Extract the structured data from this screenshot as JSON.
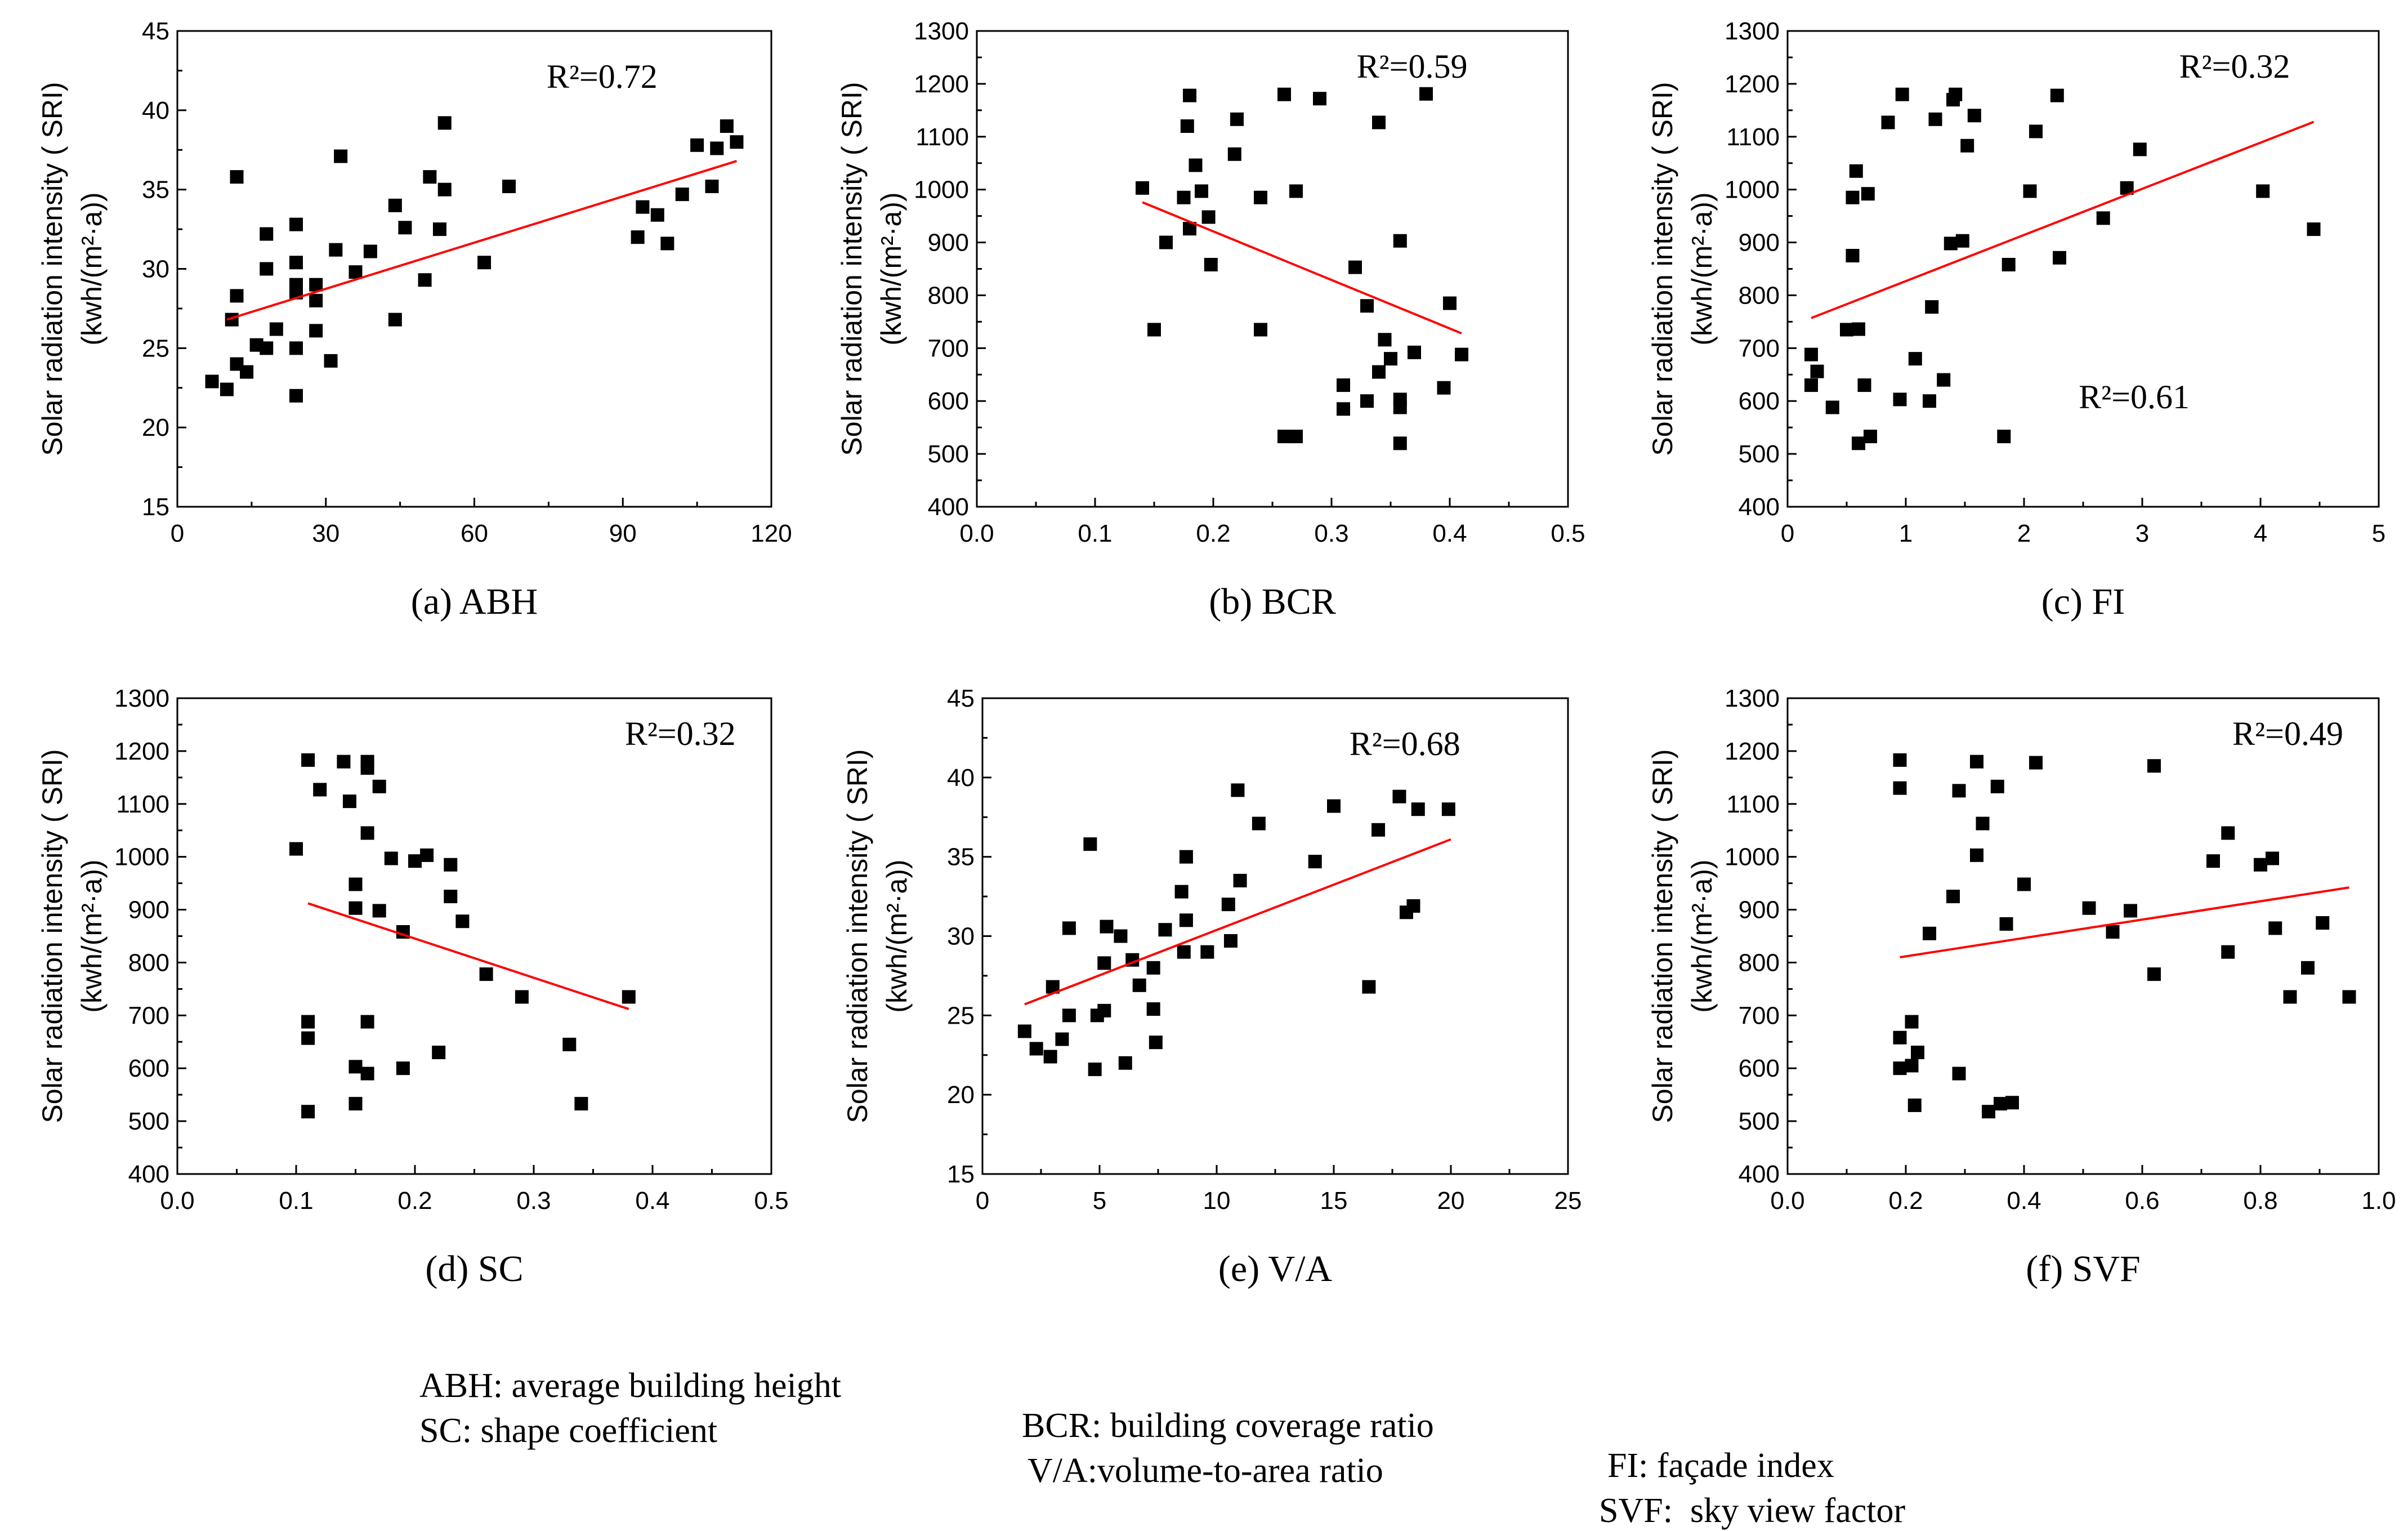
{
  "chart_data": [
    {
      "type": "scatter",
      "caption": "(a) ABH",
      "ylabel_line1": "Solar radiation intensity ( SRI)",
      "ylabel_line2": "(kwh/(m²·a))",
      "xlim": [
        0,
        120
      ],
      "xticks": [
        "0",
        "30",
        "60",
        "90",
        "120"
      ],
      "ylim": [
        15,
        45
      ],
      "yticks": [
        "15",
        "20",
        "25",
        "30",
        "35",
        "40",
        "45"
      ],
      "annotations": [
        {
          "text": "R²=0.72",
          "x": 97,
          "y": 42.2
        }
      ],
      "fit": {
        "x": [
          10,
          113
        ],
        "y": [
          26.8,
          36.8
        ]
      },
      "points": [
        {
          "x": 7,
          "y": 22.9
        },
        {
          "x": 10,
          "y": 22.4
        },
        {
          "x": 11,
          "y": 26.8
        },
        {
          "x": 12,
          "y": 24
        },
        {
          "x": 12,
          "y": 28.3
        },
        {
          "x": 12,
          "y": 35.8
        },
        {
          "x": 14,
          "y": 23.5
        },
        {
          "x": 16,
          "y": 25.2
        },
        {
          "x": 18,
          "y": 25
        },
        {
          "x": 18,
          "y": 30
        },
        {
          "x": 18,
          "y": 32.2
        },
        {
          "x": 20,
          "y": 26.2
        },
        {
          "x": 24,
          "y": 22
        },
        {
          "x": 24,
          "y": 25
        },
        {
          "x": 24,
          "y": 28.5
        },
        {
          "x": 24,
          "y": 29
        },
        {
          "x": 24,
          "y": 30.4
        },
        {
          "x": 24,
          "y": 32.8
        },
        {
          "x": 28,
          "y": 26.1
        },
        {
          "x": 28,
          "y": 28
        },
        {
          "x": 28,
          "y": 29
        },
        {
          "x": 31,
          "y": 24.2
        },
        {
          "x": 32,
          "y": 31.2
        },
        {
          "x": 33,
          "y": 37.1
        },
        {
          "x": 36,
          "y": 29.8
        },
        {
          "x": 39,
          "y": 31.1
        },
        {
          "x": 44,
          "y": 26.8
        },
        {
          "x": 44,
          "y": 34
        },
        {
          "x": 46,
          "y": 32.6
        },
        {
          "x": 50,
          "y": 29.3
        },
        {
          "x": 51,
          "y": 35.8
        },
        {
          "x": 53,
          "y": 32.5
        },
        {
          "x": 54,
          "y": 35
        },
        {
          "x": 54,
          "y": 39.2
        },
        {
          "x": 62,
          "y": 30.4
        },
        {
          "x": 67,
          "y": 35.2
        },
        {
          "x": 93,
          "y": 32
        },
        {
          "x": 94,
          "y": 33.9
        },
        {
          "x": 97,
          "y": 33.4
        },
        {
          "x": 99,
          "y": 31.6
        },
        {
          "x": 102,
          "y": 34.7
        },
        {
          "x": 105,
          "y": 37.8
        },
        {
          "x": 108,
          "y": 35.2
        },
        {
          "x": 109,
          "y": 37.6
        },
        {
          "x": 111,
          "y": 39
        },
        {
          "x": 113,
          "y": 38
        }
      ]
    },
    {
      "type": "scatter",
      "caption": "(b) BCR",
      "ylabel_line1": "Solar radiation intensity ( SRI)",
      "ylabel_line2": "(kwh/(m²·a))",
      "xlim": [
        0,
        0.5
      ],
      "xticks": [
        "0.0",
        "0.1",
        "0.2",
        "0.3",
        "0.4",
        "0.5"
      ],
      "ylim": [
        400,
        1300
      ],
      "yticks": [
        "400",
        "500",
        "600",
        "700",
        "800",
        "900",
        "1000",
        "1100",
        "1200",
        "1300"
      ],
      "annotations": [
        {
          "text": "R²=0.59",
          "x": 0.415,
          "y": 1235
        }
      ],
      "fit": {
        "x": [
          0.14,
          0.41
        ],
        "y": [
          976,
          728
        ]
      },
      "points": [
        {
          "x": 0.14,
          "y": 1003
        },
        {
          "x": 0.15,
          "y": 735
        },
        {
          "x": 0.16,
          "y": 900
        },
        {
          "x": 0.175,
          "y": 985
        },
        {
          "x": 0.178,
          "y": 1120
        },
        {
          "x": 0.18,
          "y": 1178
        },
        {
          "x": 0.18,
          "y": 926
        },
        {
          "x": 0.185,
          "y": 1046
        },
        {
          "x": 0.19,
          "y": 997
        },
        {
          "x": 0.196,
          "y": 948
        },
        {
          "x": 0.198,
          "y": 858
        },
        {
          "x": 0.218,
          "y": 1067
        },
        {
          "x": 0.22,
          "y": 1133
        },
        {
          "x": 0.24,
          "y": 985
        },
        {
          "x": 0.24,
          "y": 735
        },
        {
          "x": 0.26,
          "y": 1180
        },
        {
          "x": 0.26,
          "y": 533
        },
        {
          "x": 0.27,
          "y": 997
        },
        {
          "x": 0.27,
          "y": 533
        },
        {
          "x": 0.29,
          "y": 1172
        },
        {
          "x": 0.31,
          "y": 585
        },
        {
          "x": 0.31,
          "y": 630
        },
        {
          "x": 0.32,
          "y": 853
        },
        {
          "x": 0.33,
          "y": 780
        },
        {
          "x": 0.33,
          "y": 600
        },
        {
          "x": 0.34,
          "y": 1127
        },
        {
          "x": 0.34,
          "y": 655
        },
        {
          "x": 0.345,
          "y": 716
        },
        {
          "x": 0.35,
          "y": 680
        },
        {
          "x": 0.358,
          "y": 903
        },
        {
          "x": 0.358,
          "y": 603
        },
        {
          "x": 0.358,
          "y": 588
        },
        {
          "x": 0.358,
          "y": 520
        },
        {
          "x": 0.37,
          "y": 692
        },
        {
          "x": 0.38,
          "y": 1181
        },
        {
          "x": 0.395,
          "y": 625
        },
        {
          "x": 0.4,
          "y": 785
        },
        {
          "x": 0.41,
          "y": 688
        }
      ]
    },
    {
      "type": "scatter",
      "caption": "(c) FI",
      "ylabel_line1": "Solar radiation intensity ( SRI)",
      "ylabel_line2": "(kwh/(m²·a))",
      "xlim": [
        0,
        5
      ],
      "xticks": [
        "0",
        "1",
        "2",
        "3",
        "4",
        "5"
      ],
      "ylim": [
        400,
        1300
      ],
      "yticks": [
        "400",
        "500",
        "600",
        "700",
        "800",
        "900",
        "1000",
        "1100",
        "1200",
        "1300"
      ],
      "annotations": [
        {
          "text": "R²=0.32",
          "x": 4.25,
          "y": 1235
        },
        {
          "text": "R²=0.61",
          "x": 3.4,
          "y": 610
        }
      ],
      "fit": {
        "x": [
          0.2,
          4.45
        ],
        "y": [
          757,
          1128
        ]
      },
      "points": [
        {
          "x": 0.2,
          "y": 688
        },
        {
          "x": 0.2,
          "y": 630
        },
        {
          "x": 0.25,
          "y": 656
        },
        {
          "x": 0.38,
          "y": 588
        },
        {
          "x": 0.5,
          "y": 735
        },
        {
          "x": 0.55,
          "y": 985
        },
        {
          "x": 0.55,
          "y": 875
        },
        {
          "x": 0.58,
          "y": 1035
        },
        {
          "x": 0.6,
          "y": 520
        },
        {
          "x": 0.6,
          "y": 736
        },
        {
          "x": 0.65,
          "y": 630
        },
        {
          "x": 0.68,
          "y": 992
        },
        {
          "x": 0.7,
          "y": 533
        },
        {
          "x": 0.85,
          "y": 1127
        },
        {
          "x": 0.95,
          "y": 603
        },
        {
          "x": 0.97,
          "y": 1180
        },
        {
          "x": 1.08,
          "y": 680
        },
        {
          "x": 1.2,
          "y": 600
        },
        {
          "x": 1.22,
          "y": 778
        },
        {
          "x": 1.25,
          "y": 1133
        },
        {
          "x": 1.32,
          "y": 640
        },
        {
          "x": 1.38,
          "y": 898
        },
        {
          "x": 1.4,
          "y": 1170
        },
        {
          "x": 1.42,
          "y": 1180
        },
        {
          "x": 1.48,
          "y": 903
        },
        {
          "x": 1.52,
          "y": 1083
        },
        {
          "x": 1.58,
          "y": 1140
        },
        {
          "x": 1.83,
          "y": 533
        },
        {
          "x": 1.87,
          "y": 858
        },
        {
          "x": 2.05,
          "y": 997
        },
        {
          "x": 2.1,
          "y": 1110
        },
        {
          "x": 2.28,
          "y": 1178
        },
        {
          "x": 2.3,
          "y": 871
        },
        {
          "x": 2.67,
          "y": 946
        },
        {
          "x": 2.87,
          "y": 1003
        },
        {
          "x": 2.98,
          "y": 1076
        },
        {
          "x": 4.02,
          "y": 997
        },
        {
          "x": 4.45,
          "y": 925
        }
      ]
    },
    {
      "type": "scatter",
      "caption": "(d) SC",
      "ylabel_line1": "Solar radiation intensity ( SRI)",
      "ylabel_line2": "(kwh/(m²·a))",
      "xlim": [
        0,
        0.5
      ],
      "xticks": [
        "0.0",
        "0.1",
        "0.2",
        "0.3",
        "0.4",
        "0.5"
      ],
      "ylim": [
        400,
        1300
      ],
      "yticks": [
        "400",
        "500",
        "600",
        "700",
        "800",
        "900",
        "1000",
        "1100",
        "1200",
        "1300"
      ],
      "annotations": [
        {
          "text": "R²=0.32",
          "x": 0.47,
          "y": 1235
        }
      ],
      "fit": {
        "x": [
          0.11,
          0.38
        ],
        "y": [
          912,
          712
        ]
      },
      "points": [
        {
          "x": 0.1,
          "y": 1015
        },
        {
          "x": 0.11,
          "y": 1183
        },
        {
          "x": 0.11,
          "y": 688
        },
        {
          "x": 0.11,
          "y": 657
        },
        {
          "x": 0.11,
          "y": 518
        },
        {
          "x": 0.12,
          "y": 1127
        },
        {
          "x": 0.14,
          "y": 1180
        },
        {
          "x": 0.145,
          "y": 1105
        },
        {
          "x": 0.15,
          "y": 948
        },
        {
          "x": 0.15,
          "y": 903
        },
        {
          "x": 0.15,
          "y": 603
        },
        {
          "x": 0.15,
          "y": 533
        },
        {
          "x": 0.16,
          "y": 1180
        },
        {
          "x": 0.16,
          "y": 1168
        },
        {
          "x": 0.16,
          "y": 1045
        },
        {
          "x": 0.16,
          "y": 688
        },
        {
          "x": 0.16,
          "y": 590
        },
        {
          "x": 0.17,
          "y": 1133
        },
        {
          "x": 0.17,
          "y": 898
        },
        {
          "x": 0.18,
          "y": 997
        },
        {
          "x": 0.19,
          "y": 858
        },
        {
          "x": 0.19,
          "y": 600
        },
        {
          "x": 0.2,
          "y": 992
        },
        {
          "x": 0.21,
          "y": 1003
        },
        {
          "x": 0.22,
          "y": 630
        },
        {
          "x": 0.23,
          "y": 985
        },
        {
          "x": 0.23,
          "y": 925
        },
        {
          "x": 0.24,
          "y": 878
        },
        {
          "x": 0.26,
          "y": 778
        },
        {
          "x": 0.29,
          "y": 735
        },
        {
          "x": 0.33,
          "y": 645
        },
        {
          "x": 0.34,
          "y": 533
        },
        {
          "x": 0.38,
          "y": 735
        }
      ]
    },
    {
      "type": "scatter",
      "caption": "(e) V/A",
      "ylabel_line1": "Solar radiation intensity ( SRI)",
      "ylabel_line2": "(kwh/(m²·a))",
      "xlim": [
        0,
        25
      ],
      "xticks": [
        "0",
        "5",
        "10",
        "15",
        "20",
        "25"
      ],
      "ylim": [
        15,
        45
      ],
      "yticks": [
        "15",
        "20",
        "25",
        "30",
        "35",
        "40",
        "45"
      ],
      "annotations": [
        {
          "text": "R²=0.68",
          "x": 20.4,
          "y": 42.2
        }
      ],
      "fit": {
        "x": [
          1.8,
          20
        ],
        "y": [
          25.7,
          36.1
        ]
      },
      "points": [
        {
          "x": 1.8,
          "y": 24
        },
        {
          "x": 2.3,
          "y": 22.9
        },
        {
          "x": 2.9,
          "y": 22.4
        },
        {
          "x": 3,
          "y": 26.8
        },
        {
          "x": 3.4,
          "y": 23.5
        },
        {
          "x": 3.7,
          "y": 25
        },
        {
          "x": 3.7,
          "y": 30.5
        },
        {
          "x": 4.6,
          "y": 35.8
        },
        {
          "x": 4.8,
          "y": 21.6
        },
        {
          "x": 4.9,
          "y": 25
        },
        {
          "x": 5.2,
          "y": 28.3
        },
        {
          "x": 5.2,
          "y": 25.3
        },
        {
          "x": 5.3,
          "y": 30.6
        },
        {
          "x": 5.9,
          "y": 30
        },
        {
          "x": 6.1,
          "y": 22
        },
        {
          "x": 6.4,
          "y": 28.5
        },
        {
          "x": 6.7,
          "y": 26.9
        },
        {
          "x": 7.3,
          "y": 25.4
        },
        {
          "x": 7.3,
          "y": 28
        },
        {
          "x": 7.4,
          "y": 23.3
        },
        {
          "x": 7.8,
          "y": 30.4
        },
        {
          "x": 8.5,
          "y": 32.8
        },
        {
          "x": 8.6,
          "y": 29
        },
        {
          "x": 8.7,
          "y": 31
        },
        {
          "x": 8.7,
          "y": 35
        },
        {
          "x": 9.6,
          "y": 29
        },
        {
          "x": 10.5,
          "y": 32
        },
        {
          "x": 10.6,
          "y": 29.7
        },
        {
          "x": 10.9,
          "y": 39.2
        },
        {
          "x": 11,
          "y": 33.5
        },
        {
          "x": 11.8,
          "y": 37.1
        },
        {
          "x": 14.2,
          "y": 34.7
        },
        {
          "x": 15,
          "y": 38.2
        },
        {
          "x": 16.5,
          "y": 26.8
        },
        {
          "x": 16.9,
          "y": 36.7
        },
        {
          "x": 17.8,
          "y": 38.8
        },
        {
          "x": 18.1,
          "y": 31.5
        },
        {
          "x": 18.4,
          "y": 31.9
        },
        {
          "x": 18.6,
          "y": 38
        },
        {
          "x": 19.9,
          "y": 38
        }
      ]
    },
    {
      "type": "scatter",
      "caption": "(f) SVF",
      "ylabel_line1": "Solar radiation intensity ( SRI)",
      "ylabel_line2": "(kwh/(m²·a))",
      "xlim": [
        0,
        1
      ],
      "xticks": [
        "0.0",
        "0.2",
        "0.4",
        "0.6",
        "0.8",
        "1.0"
      ],
      "ylim": [
        400,
        1300
      ],
      "yticks": [
        "400",
        "500",
        "600",
        "700",
        "800",
        "900",
        "1000",
        "1100",
        "1200",
        "1300"
      ],
      "annotations": [
        {
          "text": "R²=0.49",
          "x": 0.94,
          "y": 1235
        }
      ],
      "fit": {
        "x": [
          0.19,
          0.95
        ],
        "y": [
          810,
          942
        ]
      },
      "points": [
        {
          "x": 0.19,
          "y": 1183
        },
        {
          "x": 0.19,
          "y": 1130
        },
        {
          "x": 0.19,
          "y": 658
        },
        {
          "x": 0.19,
          "y": 600
        },
        {
          "x": 0.21,
          "y": 688
        },
        {
          "x": 0.21,
          "y": 605
        },
        {
          "x": 0.215,
          "y": 530
        },
        {
          "x": 0.22,
          "y": 630
        },
        {
          "x": 0.24,
          "y": 855
        },
        {
          "x": 0.28,
          "y": 925
        },
        {
          "x": 0.29,
          "y": 1125
        },
        {
          "x": 0.29,
          "y": 590
        },
        {
          "x": 0.32,
          "y": 1180
        },
        {
          "x": 0.32,
          "y": 1003
        },
        {
          "x": 0.33,
          "y": 1063
        },
        {
          "x": 0.34,
          "y": 518
        },
        {
          "x": 0.355,
          "y": 1133
        },
        {
          "x": 0.36,
          "y": 533
        },
        {
          "x": 0.37,
          "y": 873
        },
        {
          "x": 0.38,
          "y": 535
        },
        {
          "x": 0.4,
          "y": 948
        },
        {
          "x": 0.42,
          "y": 1178
        },
        {
          "x": 0.51,
          "y": 903
        },
        {
          "x": 0.55,
          "y": 858
        },
        {
          "x": 0.58,
          "y": 898
        },
        {
          "x": 0.62,
          "y": 1172
        },
        {
          "x": 0.62,
          "y": 778
        },
        {
          "x": 0.72,
          "y": 992
        },
        {
          "x": 0.745,
          "y": 1045
        },
        {
          "x": 0.745,
          "y": 820
        },
        {
          "x": 0.8,
          "y": 985
        },
        {
          "x": 0.82,
          "y": 997
        },
        {
          "x": 0.825,
          "y": 865
        },
        {
          "x": 0.85,
          "y": 735
        },
        {
          "x": 0.88,
          "y": 790
        },
        {
          "x": 0.905,
          "y": 875
        },
        {
          "x": 0.95,
          "y": 735
        }
      ]
    }
  ],
  "legend": {
    "row1": [
      "ABH: average building height",
      "BCR: building coverage ratio",
      "FI: façade index"
    ],
    "row2": [
      "SC: shape coefficient",
      "V/A:volume-to-area ratio",
      "SVF:  sky view factor"
    ]
  },
  "colors": {
    "points": "#000000",
    "fit": "#ff0000",
    "axes": "#000000"
  }
}
